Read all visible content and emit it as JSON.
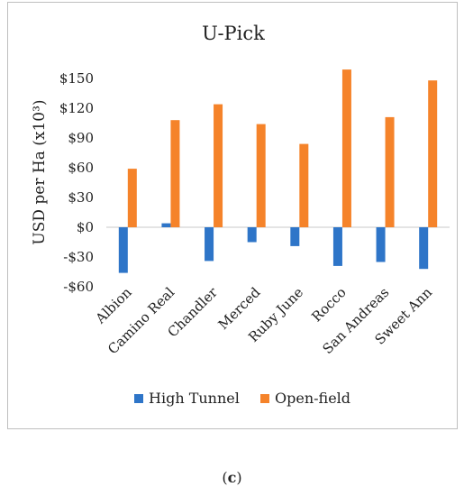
{
  "chart_data": {
    "type": "bar",
    "title": "U-Pick",
    "ylabel": "USD per Ha (x10³)",
    "xlabel": "",
    "categories": [
      "Albion",
      "Camino Real",
      "Chandler",
      "Merced",
      "Ruby June",
      "Rocco",
      "San Andreas",
      "Sweet Ann"
    ],
    "series": [
      {
        "name": "High Tunnel",
        "color": "#2e75c8",
        "values": [
          -46,
          4,
          -34,
          -15,
          -19,
          -39,
          -35,
          -42
        ]
      },
      {
        "name": "Open-field",
        "color": "#f5832a",
        "values": [
          59,
          108,
          124,
          104,
          84,
          159,
          111,
          148
        ]
      }
    ],
    "ylim": [
      -60,
      150
    ],
    "yticks": [
      -60,
      -30,
      0,
      30,
      60,
      90,
      120,
      150
    ],
    "ytick_labels": [
      "-$60",
      "-$30",
      "$0",
      "$30",
      "$60",
      "$90",
      "$120",
      "$150"
    ],
    "grid": "none",
    "legend": "bottom"
  },
  "caption": {
    "open": "(",
    "letter": "c",
    "close": ")"
  }
}
